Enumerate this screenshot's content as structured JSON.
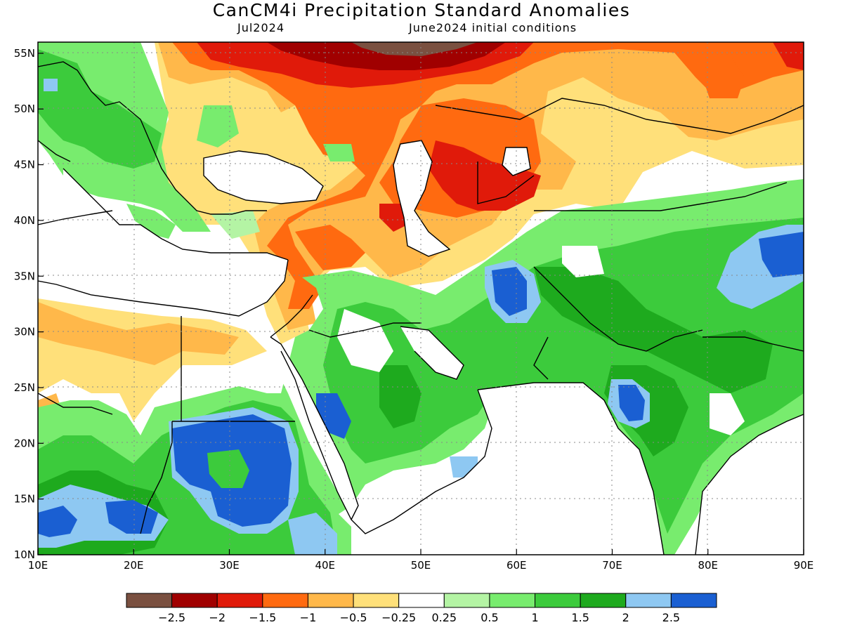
{
  "header": {
    "title": "CanCM4i Precipitation Standard Anomalies",
    "valid_month": "Jul2024",
    "init": "June2024 initial conditions"
  },
  "axes": {
    "lon_labels": [
      "10E",
      "20E",
      "30E",
      "40E",
      "50E",
      "60E",
      "70E",
      "80E",
      "90E"
    ],
    "lat_labels": [
      "55N",
      "50N",
      "45N",
      "40N",
      "35N",
      "30N",
      "25N",
      "20N",
      "15N",
      "10N"
    ],
    "lon_range": [
      10,
      90
    ],
    "lat_range": [
      10,
      56
    ],
    "grid": true
  },
  "colorbar": {
    "colors": [
      "#7a5040",
      "#a00000",
      "#e01a0a",
      "#ff6a10",
      "#ffb84a",
      "#ffe07a",
      "#ffffff",
      "#b4f4a4",
      "#78ec6e",
      "#3ccb3c",
      "#1eaa1e",
      "#8ec8f2",
      "#1a5fd2"
    ],
    "labels": [
      "−2.5",
      "−2",
      "−1.5",
      "−1",
      "−0.5",
      "−0.25",
      "0.25",
      "0.5",
      "1",
      "1.5",
      "2",
      "2.5"
    ]
  },
  "palette": {
    "ocean": "#ffffff",
    "background": "#ffffff"
  }
}
